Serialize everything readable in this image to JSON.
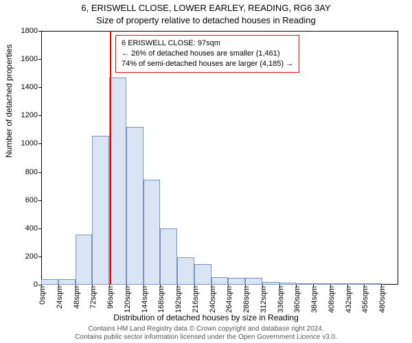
{
  "title_line1": "6, ERISWELL CLOSE, LOWER EARLEY, READING, RG6 3AY",
  "title_line2": "Size of property relative to detached houses in Reading",
  "ylabel": "Number of detached properties",
  "xlabel": "Distribution of detached houses by size in Reading",
  "attribution_line1": "Contains HM Land Registry data © Crown copyright and database right 2024.",
  "attribution_line2": "Contains public sector information licensed under the Open Government Licence v3.0.",
  "chart": {
    "type": "histogram",
    "ylim": [
      0,
      1800
    ],
    "ytick_step": 200,
    "xlim_categories": 21,
    "xtick_labels": [
      "0sqm",
      "24sqm",
      "48sqm",
      "72sqm",
      "96sqm",
      "120sqm",
      "144sqm",
      "168sqm",
      "192sqm",
      "216sqm",
      "240sqm",
      "264sqm",
      "288sqm",
      "312sqm",
      "336sqm",
      "360sqm",
      "384sqm",
      "408sqm",
      "432sqm",
      "456sqm",
      "480sqm"
    ],
    "bars": [
      40,
      40,
      355,
      1055,
      1470,
      1120,
      745,
      400,
      195,
      145,
      55,
      50,
      50,
      20,
      15,
      10,
      5,
      5,
      5,
      5
    ],
    "bar_fill": "#dbe4f2",
    "bar_stroke": "#7a93b8",
    "background": "#ffffff",
    "axis_color": "#000000",
    "reference_line": {
      "category_position": 4.04,
      "color": "#ff0000",
      "width": 2
    },
    "legend": {
      "border_color": "#ff0000",
      "bg": "#ffffff",
      "lines": [
        "6 ERISWELL CLOSE: 97sqm",
        "← 26% of detached houses are smaller (1,461)",
        "74% of semi-detached houses are larger (4,185) →"
      ],
      "fontsize": 11
    }
  }
}
